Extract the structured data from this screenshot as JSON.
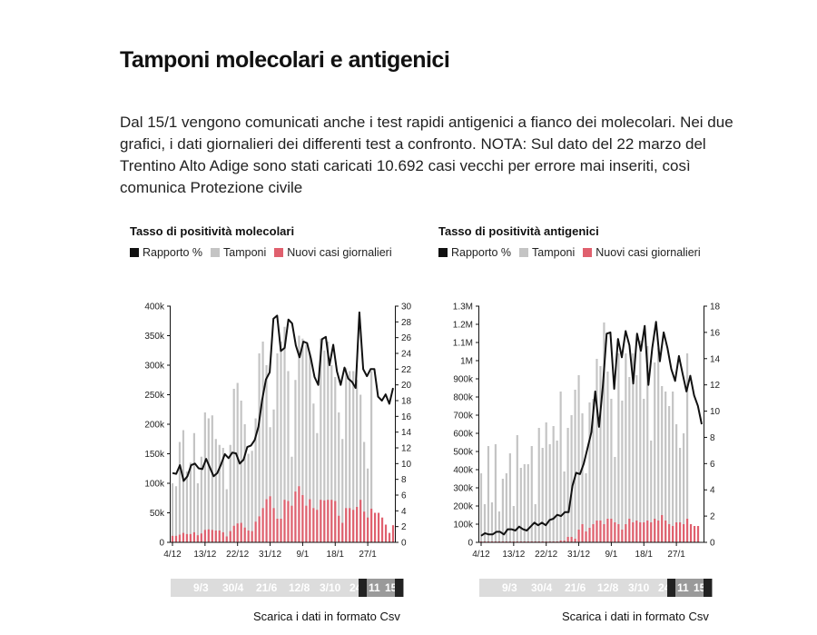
{
  "page": {
    "title": "Tamponi molecolari e antigenici",
    "intro": "Dal 15/1 vengono comunicati anche i test rapidi antigenici a fianco dei molecolari. Nei due grafici, i dati giornalieri dei differenti test a confronto. NOTA: Sul dato del 22 marzo del Trentino Alto Adige sono stati caricati 10.692 casi vecchi per errore mai inseriti, così comunica Protezione civile",
    "csv_label": "Scarica i dati in formato Csv",
    "slider_labels": [
      "9/3",
      "30/4",
      "21/6",
      "12/8",
      "3/10",
      "24",
      "11",
      "15"
    ]
  },
  "colors": {
    "line": "#111111",
    "tamponi": "#c4c4c4",
    "casi": "#e0606e",
    "slider_bg": "#dcdcdc",
    "slider_sel": "#9a9a9a"
  },
  "legend": [
    {
      "label": "Rapporto %",
      "color": "#111111"
    },
    {
      "label": "Tamponi",
      "color": "#c4c4c4"
    },
    {
      "label": "Nuovi casi giornalieri",
      "color": "#e0606e"
    }
  ],
  "chart_data": [
    {
      "type": "bar",
      "title": "Tasso di positività molecolari",
      "x_start": "2020-12-04",
      "x_ticks": [
        "4/12",
        "13/12",
        "22/12",
        "31/12",
        "9/1",
        "18/1",
        "27/1"
      ],
      "y_left_ticks": [
        "0",
        "50k",
        "100k",
        "150k",
        "200k",
        "250k",
        "300k",
        "350k",
        "400k"
      ],
      "y_left_lim": [
        0,
        400000
      ],
      "y_right_ticks": [
        "0",
        "2",
        "4",
        "6",
        "8",
        "10",
        "12",
        "14",
        "16",
        "18",
        "20",
        "22",
        "24",
        "26",
        "28",
        "30"
      ],
      "y_right_lim": [
        0,
        30
      ],
      "series": [
        {
          "name": "Tamponi",
          "kind": "bar",
          "axis": "left",
          "values": [
            100000,
            95000,
            170000,
            190000,
            120000,
            135000,
            185000,
            100000,
            145000,
            220000,
            210000,
            215000,
            175000,
            165000,
            160000,
            90000,
            165000,
            260000,
            270000,
            240000,
            200000,
            150000,
            155000,
            210000,
            320000,
            340000,
            300000,
            195000,
            225000,
            320000,
            340000,
            365000,
            290000,
            145000,
            275000,
            350000,
            345000,
            335000,
            320000,
            235000,
            185000,
            345000,
            325000,
            340000,
            300000,
            280000,
            220000,
            175000,
            295000,
            290000,
            290000,
            275000,
            250000,
            170000,
            125000,
            290000
          ]
        },
        {
          "name": "Nuovi casi giornalieri",
          "kind": "bar",
          "axis": "left",
          "values": [
            11000,
            11000,
            13000,
            16000,
            14000,
            14000,
            17000,
            12000,
            15000,
            21000,
            22000,
            21000,
            20000,
            20000,
            17000,
            10000,
            19000,
            28000,
            32000,
            33000,
            25000,
            20000,
            19000,
            35000,
            44000,
            58000,
            73000,
            78000,
            58000,
            40000,
            40000,
            72000,
            70000,
            62000,
            86000,
            95000,
            80000,
            62000,
            73000,
            58000,
            55000,
            72000,
            71000,
            72000,
            72000,
            70000,
            45000,
            33000,
            58000,
            58000,
            55000,
            60000,
            72000,
            52000,
            42000,
            57000,
            50000,
            50000,
            42000,
            30000,
            16000,
            29000
          ]
        },
        {
          "name": "Rapporto %",
          "kind": "line",
          "axis": "right",
          "values": [
            8.8,
            8.7,
            9.8,
            7.8,
            8.4,
            9.8,
            10.0,
            9.4,
            9.3,
            10.6,
            9.5,
            8.4,
            8.8,
            9.9,
            11.2,
            10.7,
            11.4,
            11.3,
            10.0,
            10.5,
            12.1,
            12.3,
            13.0,
            14.7,
            18.1,
            20.7,
            21.6,
            28.4,
            28.8,
            24.3,
            24.7,
            28.3,
            27.8,
            25.0,
            23.5,
            25.5,
            25.3,
            23.4,
            21.0,
            20.0,
            25.8,
            26.1,
            22.5,
            25.1,
            21.7,
            20.0,
            22.2,
            20.8,
            20.4,
            19.6,
            29.2,
            22.0,
            21.1,
            22.0,
            22.0,
            18.5,
            18.0,
            18.8,
            17.6,
            19.6
          ]
        }
      ]
    },
    {
      "type": "bar",
      "title": "Tasso di positività antigenici",
      "x_start": "2020-12-04",
      "x_ticks": [
        "4/12",
        "13/12",
        "22/12",
        "31/12",
        "9/1",
        "18/1",
        "27/1"
      ],
      "y_left_ticks": [
        "0",
        "100k",
        "200k",
        "300k",
        "400k",
        "500k",
        "600k",
        "700k",
        "800k",
        "900k",
        "1M",
        "1.1M",
        "1.2M",
        "1.3M"
      ],
      "y_left_lim": [
        0,
        1300000
      ],
      "y_right_ticks": [
        "0",
        "2",
        "4",
        "6",
        "8",
        "10",
        "12",
        "14",
        "16",
        "18"
      ],
      "y_right_lim": [
        0,
        18
      ],
      "series": [
        {
          "name": "Tamponi",
          "kind": "bar",
          "axis": "left",
          "values": [
            380000,
            210000,
            530000,
            220000,
            540000,
            170000,
            350000,
            380000,
            490000,
            200000,
            590000,
            410000,
            430000,
            430000,
            530000,
            210000,
            630000,
            520000,
            660000,
            540000,
            640000,
            560000,
            830000,
            390000,
            630000,
            700000,
            840000,
            920000,
            710000,
            380000,
            770000,
            790000,
            1010000,
            970000,
            1210000,
            940000,
            790000,
            470000,
            1040000,
            780000,
            1040000,
            910000,
            1040000,
            920000,
            1110000,
            790000,
            1080000,
            560000,
            990000,
            1070000,
            860000,
            830000,
            750000,
            830000,
            650000,
            520000,
            600000,
            1040000
          ]
        },
        {
          "name": "Nuovi casi giornalieri",
          "kind": "bar",
          "axis": "left",
          "values": [
            5000,
            5000,
            5000,
            5000,
            5000,
            5000,
            5000,
            5000,
            5000,
            5000,
            5000,
            5000,
            5000,
            5000,
            5000,
            5000,
            5000,
            5000,
            5000,
            5000,
            5000,
            5000,
            10000,
            10000,
            30000,
            30000,
            20000,
            70000,
            100000,
            60000,
            80000,
            100000,
            120000,
            120000,
            100000,
            130000,
            130000,
            110000,
            100000,
            70000,
            100000,
            130000,
            110000,
            120000,
            110000,
            110000,
            120000,
            110000,
            130000,
            120000,
            150000,
            120000,
            100000,
            90000,
            110000,
            110000,
            100000,
            130000,
            100000,
            90000,
            90000
          ]
        },
        {
          "name": "Rapporto %",
          "kind": "line",
          "axis": "right",
          "values": [
            0.5,
            0.7,
            0.6,
            0.6,
            0.8,
            0.8,
            0.6,
            1.0,
            1.0,
            0.9,
            1.2,
            1.0,
            0.9,
            1.2,
            1.5,
            1.3,
            1.5,
            1.3,
            1.7,
            1.8,
            2.1,
            2.0,
            2.3,
            2.3,
            4.3,
            5.3,
            5.2,
            6.0,
            7.2,
            8.4,
            11.5,
            8.8,
            11.9,
            15.9,
            16.0,
            11.7,
            15.5,
            14.1,
            16.1,
            15.0,
            12.1,
            15.9,
            14.6,
            16.5,
            12.0,
            14.8,
            16.8,
            13.8,
            16.0,
            14.8,
            13.2,
            12.3,
            14.2,
            12.8,
            11.5,
            12.7,
            11.2,
            10.4,
            9.0
          ]
        }
      ]
    }
  ]
}
